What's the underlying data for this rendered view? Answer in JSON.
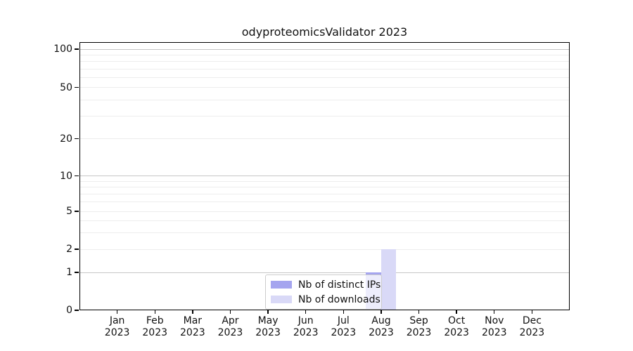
{
  "chart_data": {
    "type": "bar",
    "title": "odyproteomicsValidator 2023",
    "categories": [
      "Jan",
      "Feb",
      "Mar",
      "Apr",
      "May",
      "Jun",
      "Jul",
      "Aug",
      "Sep",
      "Oct",
      "Nov",
      "Dec"
    ],
    "year_label": "2023",
    "series": [
      {
        "name": "Nb of distinct IPs",
        "color": "#a5a5ef",
        "values": [
          0,
          0,
          0,
          0,
          0,
          0,
          0,
          1,
          0,
          0,
          0,
          0
        ]
      },
      {
        "name": "Nb of downloads",
        "color": "#d9d9f7",
        "values": [
          0,
          0,
          0,
          0,
          0,
          0,
          0,
          2,
          0,
          0,
          0,
          0
        ]
      }
    ],
    "xlabel": "",
    "ylabel": "",
    "y_axis": {
      "scale": "log-like (0,1 linear segment then logarithmic)",
      "tick_values": [
        0,
        1,
        2,
        5,
        10,
        20,
        50,
        100
      ],
      "major_gridline_values": [
        1,
        10,
        100
      ],
      "minor_gridline_values": [
        2,
        5,
        20,
        50,
        3,
        4,
        6,
        7,
        8,
        9,
        30,
        40,
        60,
        70,
        80,
        90
      ],
      "ylim": [
        0,
        120
      ]
    },
    "grid": "horizontal only",
    "legend_position": "lower center"
  },
  "legend": {
    "items": [
      {
        "label": "Nb of distinct IPs",
        "color": "#a5a5ef"
      },
      {
        "label": "Nb of downloads",
        "color": "#d9d9f7"
      }
    ]
  },
  "colors": {
    "background": "#ffffff",
    "spine": "#000000",
    "grid_major": "#c6c6c6",
    "grid_minor": "#ededed",
    "bar_distinct_ips": "#a5a5ef",
    "bar_downloads": "#d9d9f7",
    "text": "#111111"
  }
}
